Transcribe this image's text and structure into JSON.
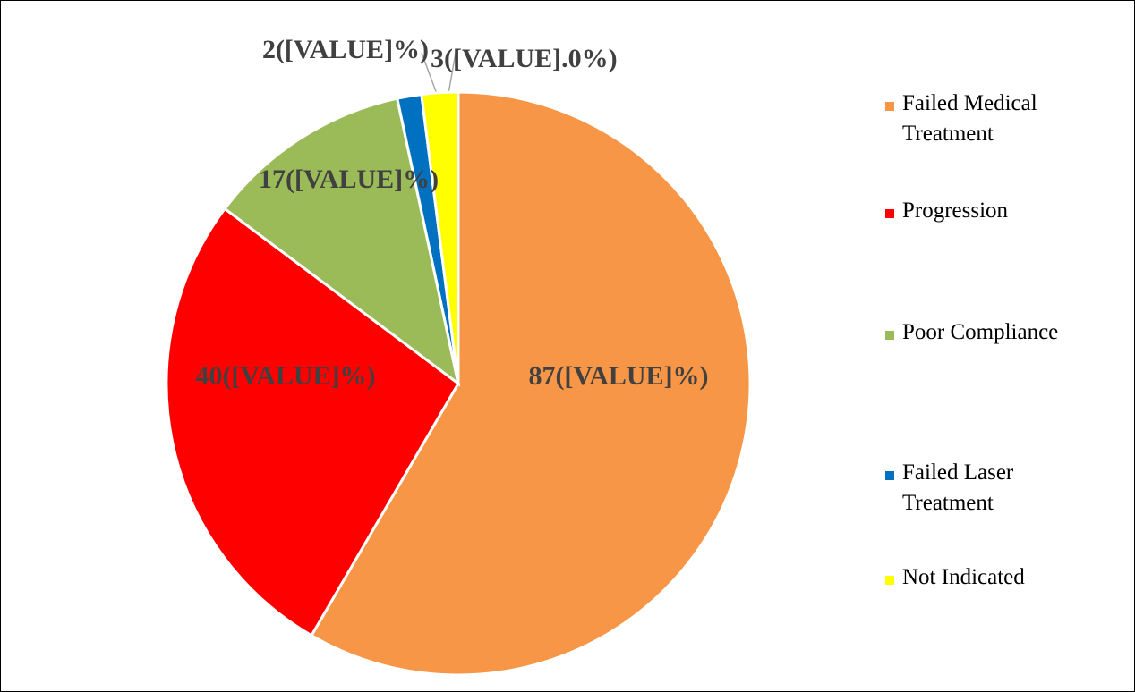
{
  "chart_data": {
    "type": "pie",
    "categories": [
      "Failed Medical Treatment",
      "Progression",
      "Poor Compliance",
      "Failed Laser Treatment",
      "Not Indicated"
    ],
    "values": [
      87,
      40,
      17,
      2,
      3
    ],
    "value_labels": [
      "87([VALUE]%)",
      "40([VALUE]%)",
      "17([VALUE]%)",
      "2([VALUE]%)",
      "3([VALUE].0%)"
    ],
    "colors": [
      "#f79646",
      "#ff0000",
      "#9bbb59",
      "#0070c0",
      "#ffff00"
    ],
    "legend": "right"
  }
}
